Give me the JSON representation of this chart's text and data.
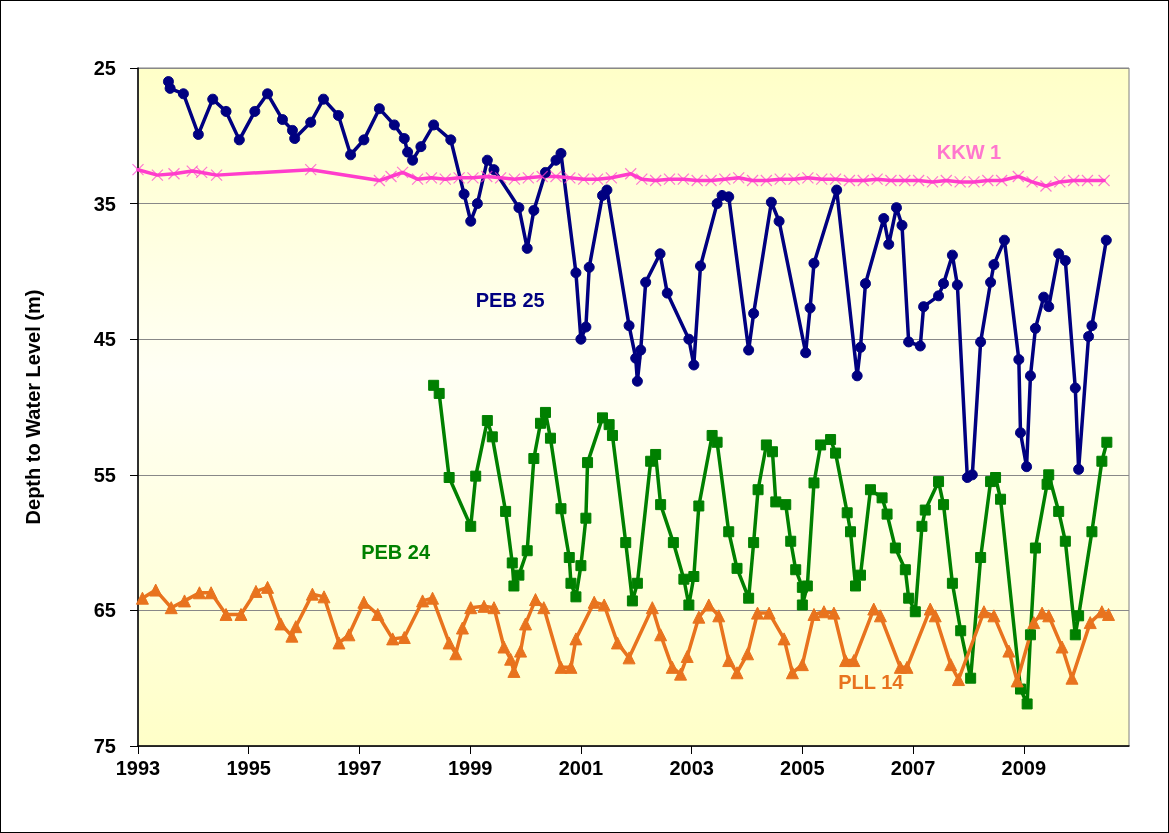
{
  "chart_data": {
    "type": "line",
    "ylabel": "Depth to Water Level (m)",
    "xlim": [
      1993,
      2010.9
    ],
    "xticks": [
      1993,
      1995,
      1997,
      1999,
      2001,
      2003,
      2005,
      2007,
      2009
    ],
    "ylim": [
      75,
      25
    ],
    "yticks": [
      25,
      35,
      45,
      55,
      65,
      75
    ],
    "grid": "y",
    "legend": false,
    "line_style": "solid",
    "series": [
      {
        "name": "PEB 25",
        "color": "#000080",
        "marker": "circle",
        "x": [
          1993.55,
          1993.58,
          1993.82,
          1994.09,
          1994.35,
          1994.59,
          1994.83,
          1995.11,
          1995.34,
          1995.61,
          1995.79,
          1995.83,
          1996.12,
          1996.35,
          1996.62,
          1996.84,
          1997.08,
          1997.36,
          1997.63,
          1997.81,
          1997.87,
          1997.96,
          1998.11,
          1998.34,
          1998.65,
          1998.89,
          1999.01,
          1999.13,
          1999.31,
          1999.43,
          1999.88,
          2000.03,
          2000.15,
          2000.36,
          2000.55,
          2000.64,
          2000.91,
          2001.0,
          2001.09,
          2001.15,
          2001.39,
          2001.47,
          2001.87,
          2001.99,
          2002.02,
          2002.08,
          2002.17,
          2002.43,
          2002.56,
          2002.95,
          2003.04,
          2003.16,
          2003.46,
          2003.55,
          2003.67,
          2004.03,
          2004.12,
          2004.44,
          2004.58,
          2005.06,
          2005.14,
          2005.21,
          2005.62,
          2005.99,
          2006.05,
          2006.14,
          2006.47,
          2006.56,
          2006.7,
          2006.8,
          2006.92,
          2007.13,
          2007.19,
          2007.46,
          2007.55,
          2007.71,
          2007.8,
          2007.98,
          2008.07,
          2008.22,
          2008.4,
          2008.46,
          2008.65,
          2008.91,
          2008.94,
          2009.05,
          2009.12,
          2009.21,
          2009.36,
          2009.45,
          2009.63,
          2009.75,
          2009.93,
          2009.99,
          2010.17,
          2010.23,
          2010.49
        ],
        "values": [
          26.0,
          26.5,
          26.9,
          29.9,
          27.3,
          28.2,
          30.3,
          28.2,
          26.9,
          28.8,
          29.6,
          30.2,
          29.0,
          27.3,
          28.5,
          31.4,
          30.3,
          28.0,
          29.2,
          30.2,
          31.2,
          31.8,
          30.8,
          29.2,
          30.3,
          34.3,
          36.3,
          35.0,
          31.8,
          32.5,
          35.3,
          38.3,
          35.5,
          32.7,
          31.8,
          31.3,
          40.1,
          45.0,
          44.1,
          39.7,
          34.4,
          34.0,
          44.0,
          46.4,
          48.1,
          45.8,
          40.8,
          38.7,
          41.6,
          45.0,
          46.9,
          39.6,
          35.0,
          34.4,
          34.5,
          45.8,
          43.1,
          34.9,
          36.3,
          46.0,
          42.7,
          39.4,
          34.0,
          47.7,
          45.6,
          40.9,
          36.1,
          38.0,
          35.3,
          36.6,
          45.2,
          45.5,
          42.6,
          41.8,
          40.9,
          38.8,
          41.0,
          55.2,
          55.0,
          45.2,
          40.8,
          39.5,
          37.7,
          46.5,
          51.9,
          54.4,
          47.7,
          44.2,
          41.9,
          42.6,
          38.7,
          39.2,
          48.6,
          54.6,
          44.8,
          44.0,
          37.7
        ]
      },
      {
        "name": "KKW 1",
        "color": "#ff3dcc",
        "marker": "cross",
        "x": [
          1993.0,
          1993.35,
          1993.65,
          1993.98,
          1994.15,
          1994.42,
          1996.12,
          1997.36,
          1997.57,
          1997.78,
          1998.05,
          1998.3,
          1998.55,
          1998.8,
          1999.05,
          1999.3,
          1999.55,
          1999.8,
          2000.05,
          2000.3,
          2000.55,
          2000.8,
          2001.05,
          2001.3,
          2001.55,
          2001.9,
          2002.1,
          2002.35,
          2002.6,
          2002.85,
          2003.1,
          2003.35,
          2003.6,
          2003.85,
          2004.1,
          2004.35,
          2004.6,
          2004.85,
          2005.1,
          2005.35,
          2005.6,
          2005.85,
          2006.1,
          2006.35,
          2006.6,
          2006.85,
          2007.1,
          2007.35,
          2007.6,
          2007.85,
          2008.1,
          2008.35,
          2008.6,
          2008.9,
          2009.15,
          2009.4,
          2009.65,
          2009.9,
          2010.15,
          2010.45
        ],
        "values": [
          32.5,
          32.9,
          32.8,
          32.6,
          32.7,
          32.9,
          32.5,
          33.3,
          33.0,
          32.7,
          33.2,
          33.1,
          33.2,
          33.1,
          33.1,
          33.0,
          33.1,
          33.2,
          33.1,
          33.0,
          33.0,
          33.1,
          33.2,
          33.2,
          33.1,
          32.8,
          33.2,
          33.3,
          33.2,
          33.2,
          33.3,
          33.3,
          33.2,
          33.1,
          33.3,
          33.3,
          33.2,
          33.2,
          33.1,
          33.2,
          33.2,
          33.3,
          33.3,
          33.2,
          33.3,
          33.3,
          33.3,
          33.4,
          33.3,
          33.4,
          33.4,
          33.3,
          33.3,
          33.0,
          33.4,
          33.7,
          33.4,
          33.3,
          33.3,
          33.3
        ]
      },
      {
        "name": "PEB 24",
        "color": "#008000",
        "marker": "square",
        "x": [
          1998.34,
          1998.44,
          1998.62,
          1999.01,
          1999.1,
          1999.31,
          1999.4,
          1999.64,
          1999.76,
          1999.79,
          1999.88,
          2000.03,
          2000.15,
          2000.27,
          2000.36,
          2000.45,
          2000.64,
          2000.79,
          2000.82,
          2000.91,
          2001.0,
          2001.09,
          2001.12,
          2001.39,
          2001.51,
          2001.57,
          2001.81,
          2001.93,
          2002.02,
          2002.26,
          2002.35,
          2002.44,
          2002.67,
          2002.86,
          2002.95,
          2003.04,
          2003.13,
          2003.37,
          2003.46,
          2003.67,
          2003.82,
          2004.03,
          2004.12,
          2004.2,
          2004.35,
          2004.46,
          2004.52,
          2004.7,
          2004.79,
          2004.88,
          2005.0,
          2005.0,
          2005.09,
          2005.21,
          2005.33,
          2005.51,
          2005.6,
          2005.81,
          2005.87,
          2005.96,
          2006.05,
          2006.23,
          2006.44,
          2006.53,
          2006.68,
          2006.86,
          2006.92,
          2007.04,
          2007.16,
          2007.22,
          2007.46,
          2007.55,
          2007.71,
          2007.86,
          2008.04,
          2008.22,
          2008.4,
          2008.49,
          2008.58,
          2008.94,
          2009.06,
          2009.12,
          2009.21,
          2009.42,
          2009.45,
          2009.63,
          2009.75,
          2009.93,
          2009.99,
          2010.23,
          2010.41,
          2010.5
        ],
        "values": [
          48.4,
          49.0,
          55.2,
          58.8,
          55.1,
          51.0,
          52.2,
          57.7,
          61.5,
          63.2,
          62.4,
          60.6,
          53.8,
          51.2,
          50.4,
          52.3,
          57.5,
          61.1,
          63.0,
          64.0,
          61.7,
          58.2,
          54.1,
          50.8,
          51.3,
          52.1,
          60.0,
          64.3,
          63.0,
          54.0,
          53.5,
          57.2,
          60.0,
          62.7,
          64.6,
          62.5,
          57.3,
          52.1,
          52.6,
          59.2,
          61.9,
          64.1,
          60.0,
          56.1,
          52.8,
          53.3,
          57.0,
          57.2,
          59.9,
          62.0,
          63.3,
          64.6,
          63.2,
          55.6,
          52.8,
          52.4,
          53.4,
          57.8,
          59.2,
          63.2,
          62.4,
          56.1,
          56.7,
          57.9,
          60.4,
          62.0,
          64.1,
          65.1,
          58.8,
          57.6,
          55.5,
          57.2,
          63.0,
          66.5,
          70.0,
          61.1,
          55.5,
          55.2,
          56.8,
          70.8,
          71.9,
          66.8,
          60.4,
          55.7,
          55.0,
          57.7,
          59.9,
          66.8,
          65.4,
          59.2,
          54.0,
          52.6
        ]
      },
      {
        "name": "PLL 14",
        "color": "#e8731e",
        "marker": "triangle",
        "x": [
          1993.08,
          1993.32,
          1993.6,
          1993.84,
          1994.11,
          1994.32,
          1994.59,
          1994.86,
          1995.13,
          1995.34,
          1995.58,
          1995.78,
          1995.85,
          1996.15,
          1996.36,
          1996.63,
          1996.81,
          1997.08,
          1997.33,
          1997.6,
          1997.81,
          1998.14,
          1998.32,
          1998.62,
          1998.74,
          1998.86,
          1999.01,
          1999.25,
          1999.43,
          1999.61,
          1999.73,
          1999.79,
          1999.91,
          2000.0,
          2000.18,
          2000.33,
          2000.64,
          2000.82,
          2000.91,
          2001.24,
          2001.42,
          2001.66,
          2001.87,
          2002.29,
          2002.44,
          2002.65,
          2002.8,
          2002.92,
          2003.13,
          2003.31,
          2003.49,
          2003.67,
          2003.82,
          2004.01,
          2004.19,
          2004.4,
          2004.67,
          2004.82,
          2005.0,
          2005.21,
          2005.39,
          2005.57,
          2005.78,
          2005.93,
          2006.29,
          2006.41,
          2006.77,
          2006.89,
          2007.31,
          2007.4,
          2007.68,
          2007.82,
          2008.28,
          2008.46,
          2008.73,
          2008.88,
          2009.18,
          2009.33,
          2009.45,
          2009.69,
          2009.87,
          2010.2,
          2010.41,
          2010.53
        ],
        "values": [
          64.1,
          63.5,
          64.8,
          64.3,
          63.7,
          63.7,
          65.3,
          65.3,
          63.6,
          63.3,
          66.0,
          66.9,
          66.2,
          63.8,
          64.0,
          67.4,
          66.8,
          64.4,
          65.3,
          67.1,
          67.0,
          64.3,
          64.1,
          67.4,
          68.2,
          66.3,
          64.8,
          64.7,
          64.8,
          67.7,
          68.6,
          69.5,
          68.0,
          66.0,
          64.2,
          64.8,
          69.2,
          69.2,
          67.1,
          64.4,
          64.6,
          67.4,
          68.5,
          64.8,
          66.8,
          69.2,
          69.7,
          68.4,
          65.5,
          64.6,
          65.4,
          68.7,
          69.6,
          68.2,
          65.2,
          65.2,
          67.1,
          69.6,
          69.0,
          65.3,
          65.1,
          65.2,
          68.7,
          68.7,
          64.9,
          65.4,
          69.2,
          69.2,
          64.9,
          65.4,
          69.0,
          70.1,
          65.1,
          65.4,
          68.0,
          70.2,
          65.9,
          65.2,
          65.4,
          67.7,
          70.0,
          65.9,
          65.1,
          65.3
        ]
      }
    ]
  }
}
